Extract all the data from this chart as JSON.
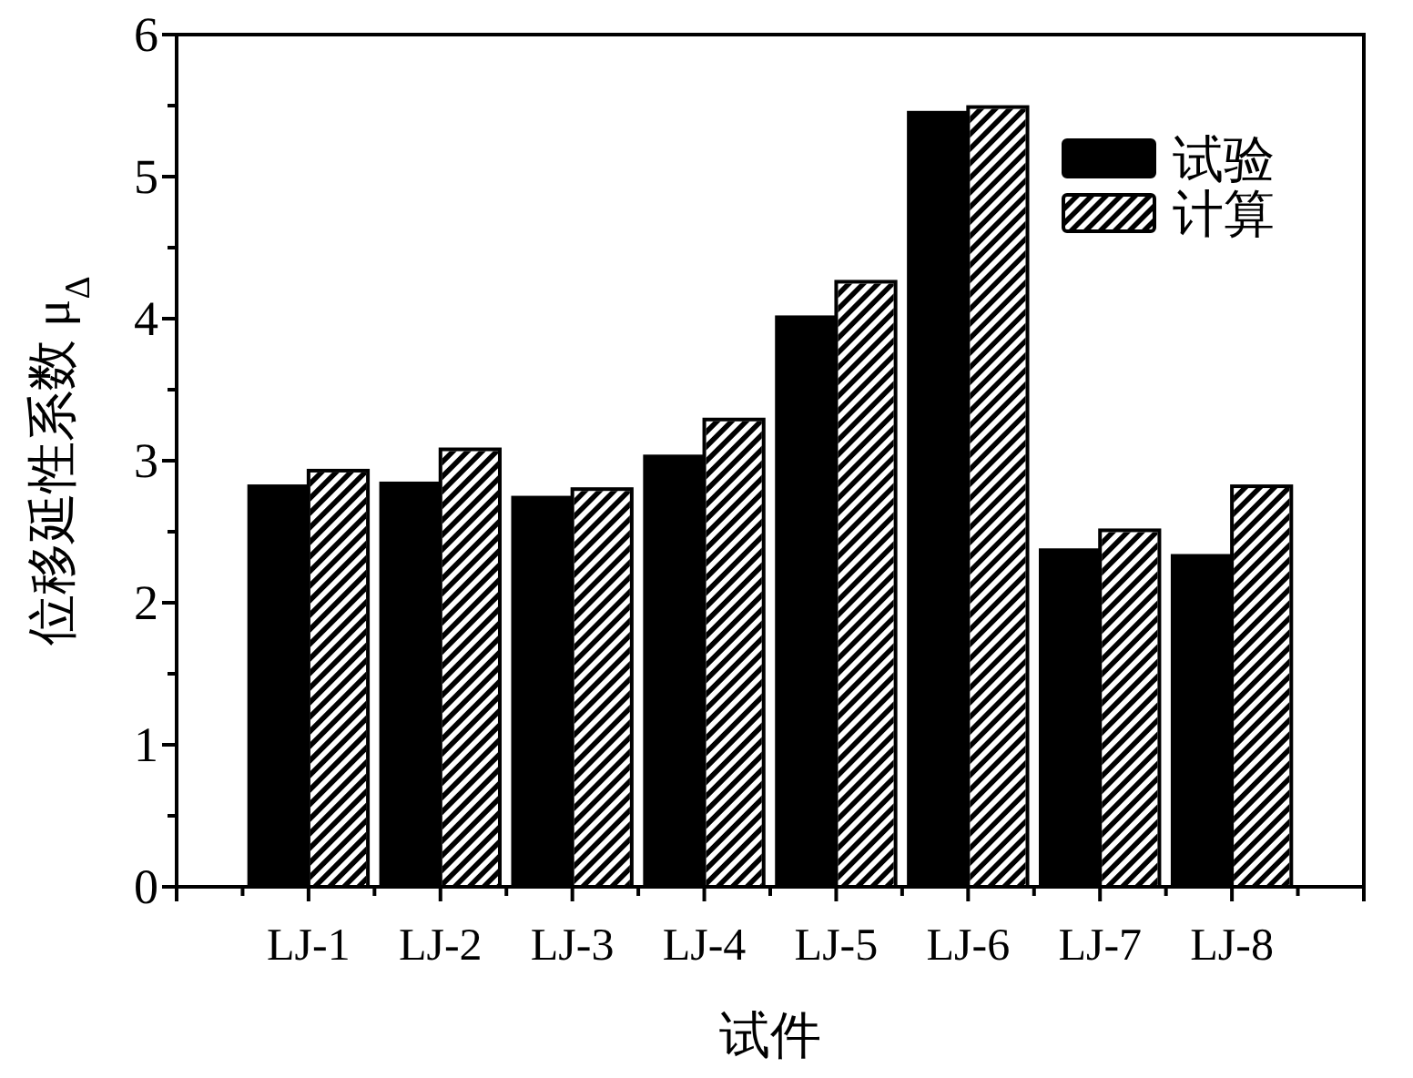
{
  "chart_data": {
    "type": "bar",
    "xlabel": "试件",
    "ylabel": "位移延性系数 μ$_{Δ}$",
    "categories": [
      "LJ-1",
      "LJ-2",
      "LJ-3",
      "LJ-4",
      "LJ-5",
      "LJ-6",
      "LJ-7",
      "LJ-8"
    ],
    "series": [
      {
        "name": "试验",
        "color": "#000000",
        "values": [
          2.82,
          2.84,
          2.74,
          3.03,
          4.01,
          5.45,
          2.37,
          2.33
        ]
      },
      {
        "name": "计算",
        "color": "#ffffff",
        "values": [
          2.93,
          3.08,
          2.8,
          3.29,
          4.26,
          5.49,
          2.51,
          2.82
        ]
      }
    ],
    "ylim": [
      0,
      6
    ],
    "yticks": [
      0,
      1,
      2,
      3,
      4,
      5,
      6
    ],
    "grid": false,
    "legend": "top right"
  }
}
